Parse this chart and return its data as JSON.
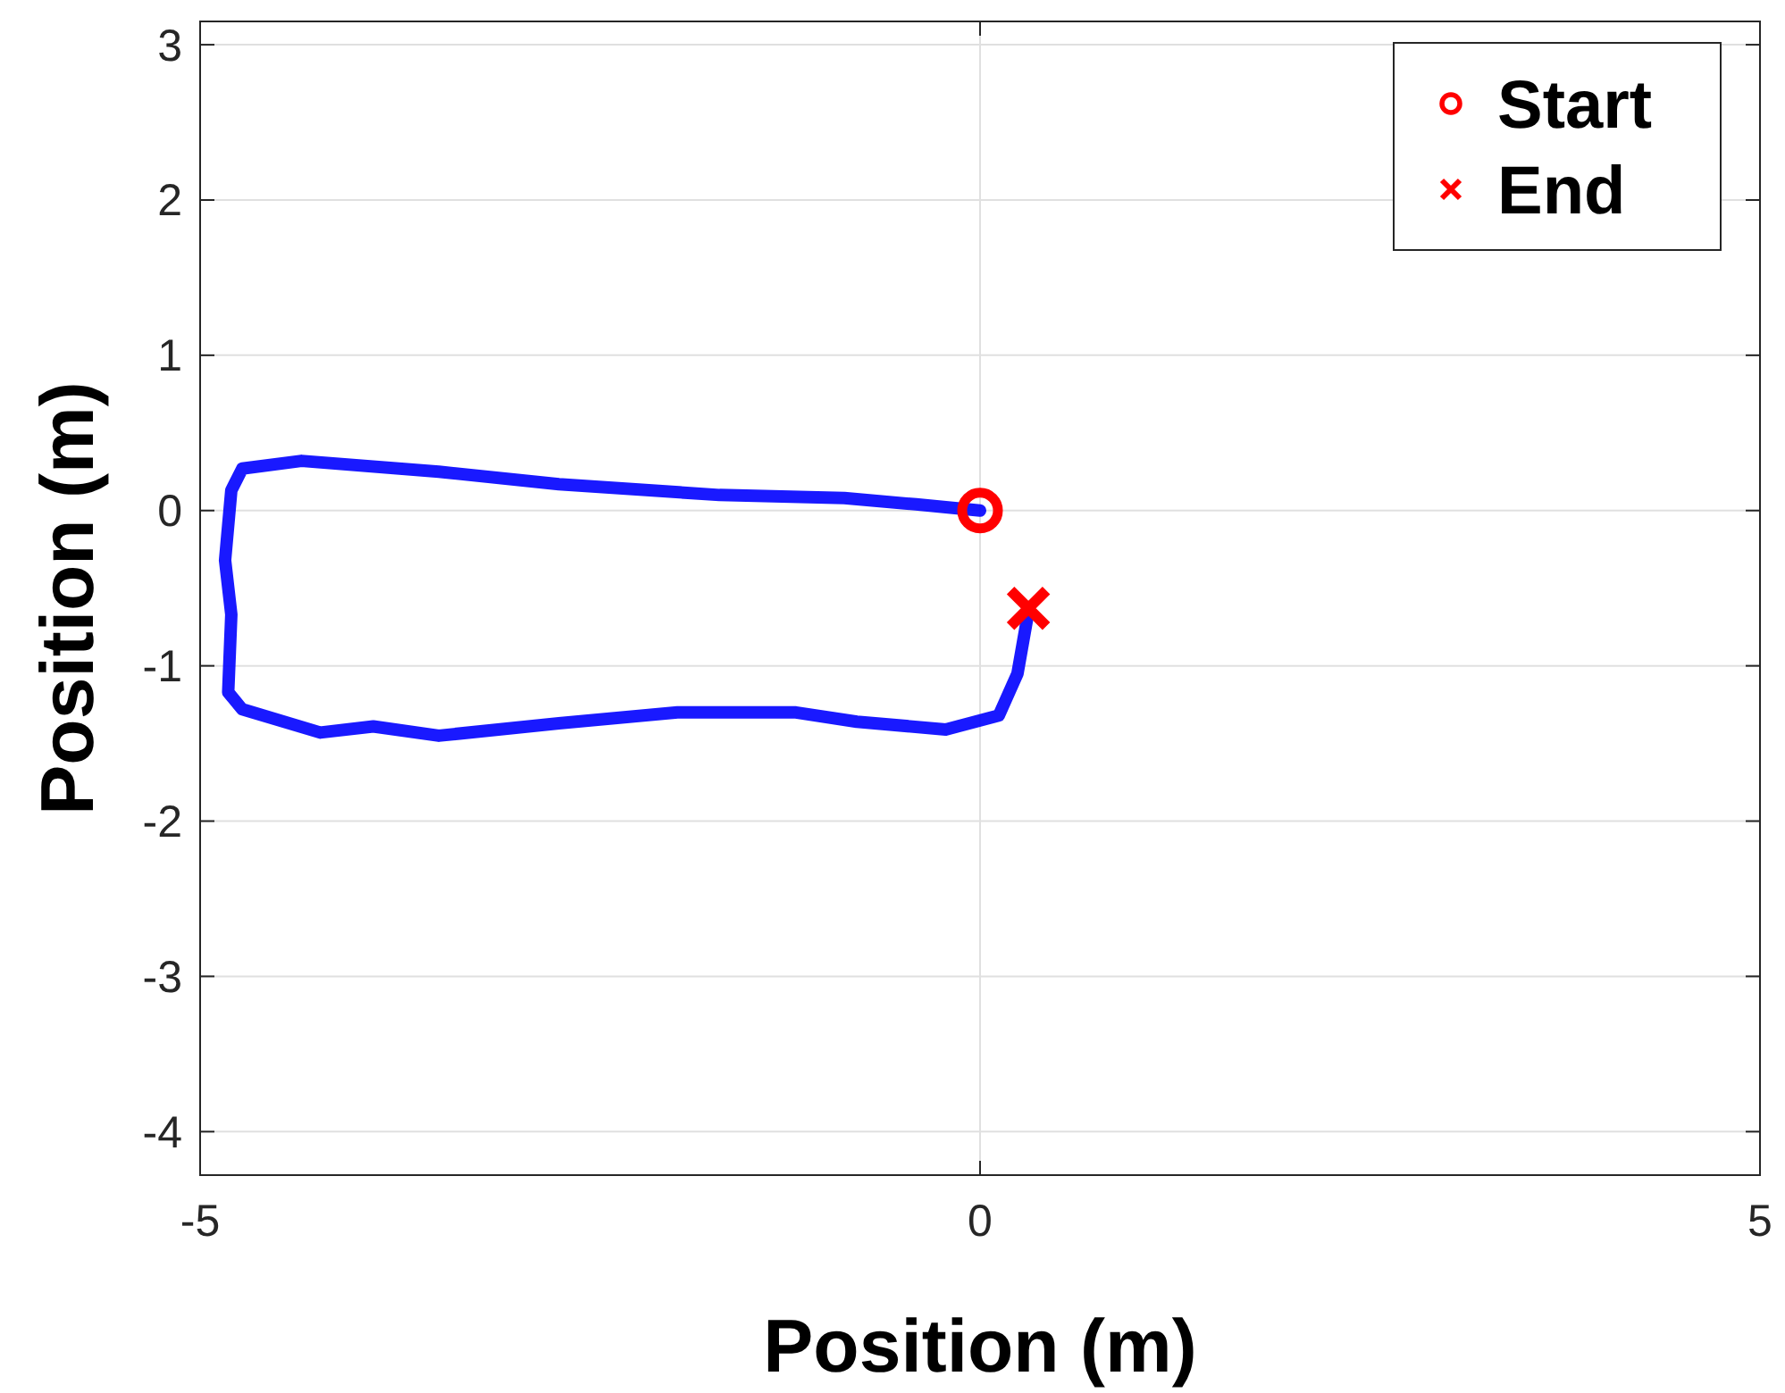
{
  "chart_data": {
    "type": "line",
    "xlabel": "Position (m)",
    "ylabel": "Position (m)",
    "xlim": [
      -5,
      5
    ],
    "ylim": [
      -4.28,
      3.15
    ],
    "xticks": [
      -5,
      0,
      5
    ],
    "yticks": [
      -4,
      -3,
      -2,
      -1,
      0,
      1,
      2,
      3
    ],
    "grid": true,
    "legend": "top right",
    "series": [
      {
        "color": "#0000ff",
        "x": [
          0,
          -0.41,
          -0.87,
          -1.67,
          -2.7,
          -3.47,
          -4.35,
          -4.73,
          -4.8,
          -4.84,
          -4.8,
          -4.82,
          -4.73,
          -4.23,
          -3.89,
          -3.47,
          -2.7,
          -1.94,
          -1.18,
          -0.79,
          -0.22,
          0.12,
          0.24,
          0.31
        ],
        "values": [
          0,
          0.04,
          0.08,
          0.1,
          0.17,
          0.25,
          0.32,
          0.27,
          0.13,
          -0.32,
          -0.67,
          -1.17,
          -1.28,
          -1.43,
          -1.39,
          -1.45,
          -1.37,
          -1.3,
          -1.3,
          -1.36,
          -1.41,
          -1.32,
          -1.05,
          -0.65
        ]
      },
      {
        "type": "scatter",
        "name": "Start",
        "color": "#ff0000",
        "marker": "circle",
        "x": [
          0
        ],
        "values": [
          0
        ]
      },
      {
        "type": "scatter",
        "name": "End",
        "color": "#ff0000",
        "marker": "cross",
        "x": [
          0.31
        ],
        "values": [
          -0.63
        ]
      }
    ]
  }
}
